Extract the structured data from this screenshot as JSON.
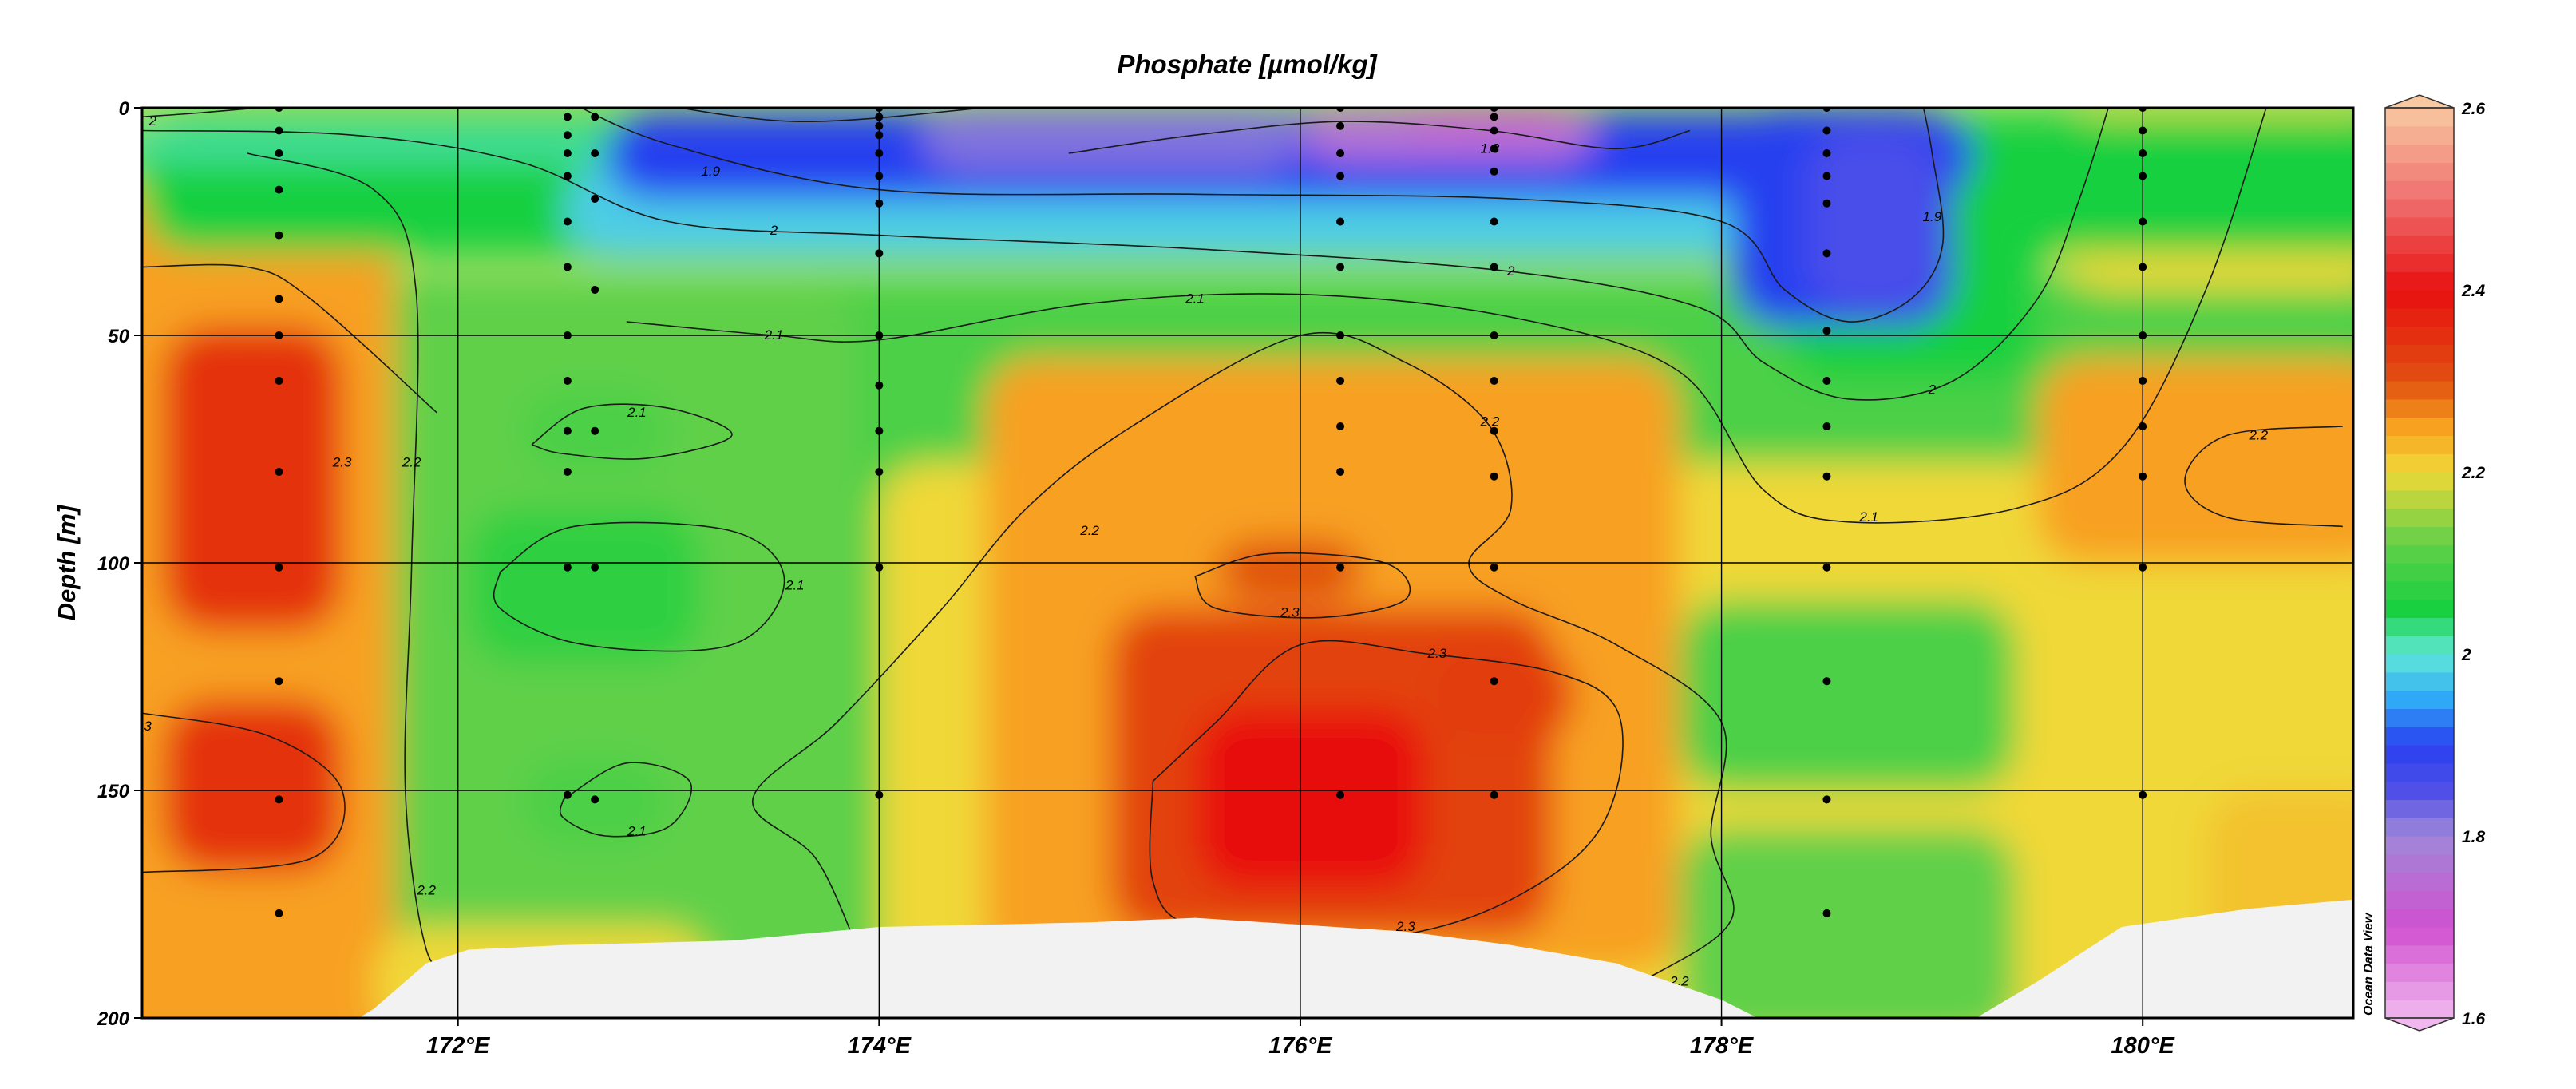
{
  "chart_data": {
    "type": "heatmap",
    "title": "Phosphate [µmol/kg]",
    "xlabel": "",
    "ylabel": "Depth [m]",
    "watermark": "Ocean Data View",
    "xlim": [
      170.5,
      181.0
    ],
    "ylim": [
      200,
      0
    ],
    "x_ticks": [
      172,
      174,
      176,
      178,
      180
    ],
    "x_tick_labels": [
      "172°E",
      "174°E",
      "176°E",
      "178°E",
      "180°E"
    ],
    "y_ticks": [
      0,
      50,
      100,
      150,
      200
    ],
    "y_tick_labels": [
      "0",
      "50",
      "100",
      "150",
      "200"
    ],
    "grid": true,
    "colorscale": {
      "min": 1.6,
      "max": 2.6,
      "ticks": [
        1.6,
        1.8,
        2.0,
        2.2,
        2.4,
        2.6
      ],
      "tick_labels": [
        "1.6",
        "1.8",
        "2",
        "2.2",
        "2.4",
        "2.6"
      ],
      "stops": [
        {
          "v": 1.6,
          "color": "#f0b8ee"
        },
        {
          "v": 1.7,
          "color": "#d050d0"
        },
        {
          "v": 1.8,
          "color": "#a088d8"
        },
        {
          "v": 1.85,
          "color": "#5050e8"
        },
        {
          "v": 1.9,
          "color": "#2840f0"
        },
        {
          "v": 1.95,
          "color": "#30a8f8"
        },
        {
          "v": 2.0,
          "color": "#60e8d8"
        },
        {
          "v": 2.05,
          "color": "#18d040"
        },
        {
          "v": 2.12,
          "color": "#60d048"
        },
        {
          "v": 2.2,
          "color": "#f0d838"
        },
        {
          "v": 2.25,
          "color": "#f8a020"
        },
        {
          "v": 2.3,
          "color": "#e05010"
        },
        {
          "v": 2.4,
          "color": "#e81010"
        },
        {
          "v": 2.5,
          "color": "#f07070"
        },
        {
          "v": 2.6,
          "color": "#f8c8a0"
        }
      ]
    },
    "contour_levels": [
      {
        "value": 1.8,
        "label": "1.8"
      },
      {
        "value": 1.9,
        "label": "1.9"
      },
      {
        "value": 2.0,
        "label": "2"
      },
      {
        "value": 2.1,
        "label": "2.1"
      },
      {
        "value": 2.2,
        "label": "2.2"
      },
      {
        "value": 2.3,
        "label": "2.3"
      }
    ],
    "stations": [
      {
        "lon": 171.15,
        "depths": [
          0,
          5,
          10,
          18,
          28,
          42,
          50,
          60,
          80,
          101,
          126,
          152,
          177
        ]
      },
      {
        "lon": 172.52,
        "depths": [
          2,
          6,
          10,
          15,
          25,
          35,
          50,
          60,
          71,
          80,
          101,
          151
        ]
      },
      {
        "lon": 172.65,
        "depths": [
          2,
          10,
          20,
          40,
          71,
          101,
          152
        ]
      },
      {
        "lon": 174.0,
        "depths": [
          0,
          2,
          4,
          6,
          10,
          15,
          21,
          32,
          50,
          61,
          71,
          80,
          101,
          151
        ]
      },
      {
        "lon": 176.19,
        "depths": [
          0,
          4,
          10,
          15,
          25,
          35,
          50,
          60,
          70,
          80,
          101,
          151
        ]
      },
      {
        "lon": 176.92,
        "depths": [
          0,
          2,
          5,
          9,
          14,
          25,
          35,
          50,
          60,
          71,
          81,
          101,
          126,
          151
        ]
      },
      {
        "lon": 178.5,
        "depths": [
          0,
          5,
          10,
          15,
          21,
          32,
          49,
          60,
          70,
          81,
          101,
          126,
          152,
          177
        ]
      },
      {
        "lon": 180.0,
        "depths": [
          0,
          5,
          10,
          15,
          25,
          35,
          50,
          60,
          70,
          81,
          101,
          151
        ]
      }
    ],
    "bottom_depth_profile": [
      {
        "lon": 170.5,
        "depth": 205
      },
      {
        "lon": 171.35,
        "depth": 205
      },
      {
        "lon": 171.6,
        "depth": 198
      },
      {
        "lon": 171.85,
        "depth": 188
      },
      {
        "lon": 172.05,
        "depth": 185
      },
      {
        "lon": 172.5,
        "depth": 184
      },
      {
        "lon": 173.3,
        "depth": 183
      },
      {
        "lon": 174.0,
        "depth": 180
      },
      {
        "lon": 175.0,
        "depth": 179
      },
      {
        "lon": 175.5,
        "depth": 178
      },
      {
        "lon": 176.5,
        "depth": 181
      },
      {
        "lon": 177.0,
        "depth": 184
      },
      {
        "lon": 177.5,
        "depth": 188
      },
      {
        "lon": 178.0,
        "depth": 196
      },
      {
        "lon": 178.3,
        "depth": 203
      },
      {
        "lon": 179.1,
        "depth": 203
      },
      {
        "lon": 179.5,
        "depth": 192
      },
      {
        "lon": 179.9,
        "depth": 180
      },
      {
        "lon": 180.5,
        "depth": 176
      },
      {
        "lon": 181.0,
        "depth": 174
      }
    ]
  }
}
